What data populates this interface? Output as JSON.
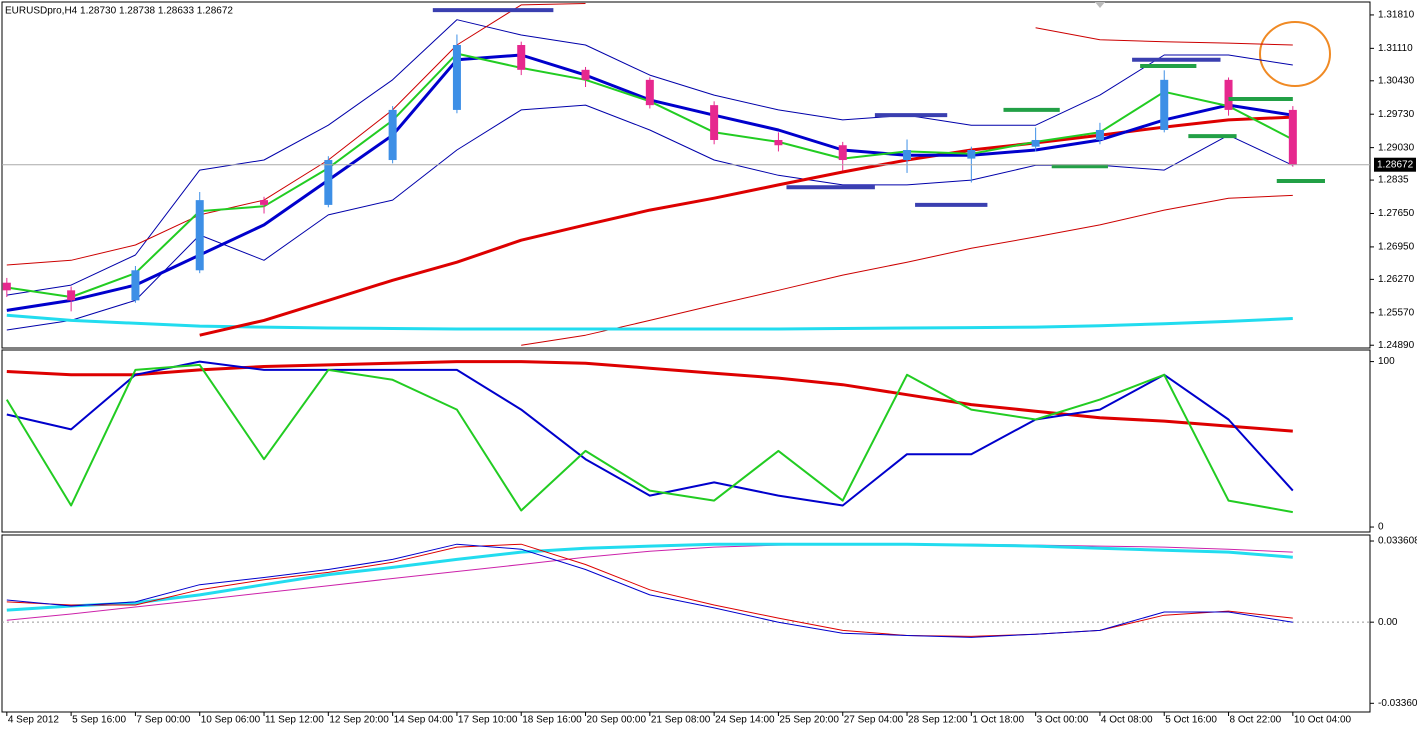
{
  "chart_data": [
    {
      "type": "candlestick",
      "title": "EURUSDpro,H4 1.28730 1.28738 1.28633 1.28672",
      "x": [
        0,
        8,
        16,
        24,
        32,
        40,
        48,
        56,
        64,
        72,
        80,
        88,
        96,
        104,
        112,
        120,
        128,
        136,
        144,
        152,
        160
      ],
      "open": [
        1.262,
        1.2604,
        1.2583,
        1.2646,
        1.2793,
        1.2783,
        1.2877,
        1.2982,
        1.3118,
        1.3066,
        1.3045,
        1.2992,
        1.2919,
        1.2908,
        1.2877,
        1.288,
        1.2905,
        1.2919,
        1.294,
        1.3045,
        1.2982
      ],
      "high": [
        1.263,
        1.2612,
        1.2655,
        1.281,
        1.28,
        1.2885,
        1.299,
        1.314,
        1.3125,
        1.3072,
        1.305,
        1.3,
        1.2935,
        1.2915,
        1.292,
        1.2905,
        1.2945,
        1.2955,
        1.3065,
        1.305,
        1.299
      ],
      "low": [
        1.259,
        1.256,
        1.2578,
        1.264,
        1.2765,
        1.2778,
        1.287,
        1.2975,
        1.3055,
        1.303,
        1.2985,
        1.291,
        1.2895,
        1.2855,
        1.285,
        1.283,
        1.2895,
        1.291,
        1.2935,
        1.297,
        1.2863
      ],
      "close": [
        1.2604,
        1.2583,
        1.2646,
        1.2793,
        1.2783,
        1.2877,
        1.2982,
        1.3118,
        1.3066,
        1.3045,
        1.2992,
        1.2919,
        1.2908,
        1.2877,
        1.2898,
        1.2898,
        1.2919,
        1.294,
        1.3045,
        1.2982,
        1.2867
      ],
      "up_color": "#3d8fe6",
      "down_color": "#e6288e",
      "series": [
        {
          "color": "#0000aa",
          "width": 1,
          "values": [
            1.2594,
            1.2615,
            1.2678,
            1.2856,
            1.2877,
            1.295,
            1.3045,
            1.3171,
            1.3139,
            1.3118,
            1.3055,
            1.3013,
            1.2982,
            1.2961,
            1.2971,
            1.295,
            1.295,
            1.3013,
            1.3097,
            1.3097,
            1.3076
          ]
        },
        {
          "color": "#0000aa",
          "width": 1,
          "values": [
            1.2521,
            1.2541,
            1.2583,
            1.272,
            1.2667,
            1.2762,
            1.2793,
            1.2898,
            1.2982,
            1.2992,
            1.294,
            1.2877,
            1.2845,
            1.2825,
            1.2825,
            1.2835,
            1.2866,
            1.2866,
            1.2856,
            1.2929,
            1.2866
          ]
        },
        {
          "color": "#cc0000",
          "width": 1,
          "values": [
            1.2657,
            1.2667,
            1.2699,
            1.2762,
            1.2793,
            1.2877,
            1.2982,
            1.3118,
            1.3202,
            1.3205,
            null,
            null,
            null,
            null,
            null,
            null,
            1.3154,
            1.3129,
            1.3125,
            1.3122,
            1.3118
          ]
        },
        {
          "color": "#cc0000",
          "width": 1,
          "values": [
            null,
            null,
            null,
            null,
            null,
            null,
            null,
            null,
            1.2489,
            1.251,
            1.2541,
            1.2573,
            1.2604,
            1.2636,
            1.2663,
            1.2692,
            1.2716,
            1.2741,
            1.2772,
            1.2797,
            1.2803
          ]
        },
        {
          "color": "#22dcef",
          "width": 3,
          "values": [
            1.2552,
            1.2541,
            1.2535,
            1.2529,
            1.2527,
            1.2525,
            1.2524,
            1.2523,
            1.2523,
            1.2523,
            1.2523,
            1.2523,
            1.2523,
            1.2524,
            1.2525,
            1.2526,
            1.2527,
            1.253,
            1.2534,
            1.2539,
            1.2545
          ]
        },
        {
          "color": "#dd0000",
          "width": 3,
          "values": [
            null,
            null,
            null,
            1.251,
            1.2541,
            1.2583,
            1.2625,
            1.2663,
            1.2709,
            1.2741,
            1.2772,
            1.2797,
            1.2825,
            1.2852,
            1.2877,
            1.2898,
            1.2913,
            1.2929,
            1.2946,
            1.2961,
            1.2967
          ]
        },
        {
          "color": "#0000cc",
          "width": 3,
          "values": [
            1.2562,
            1.2583,
            1.2615,
            1.2678,
            1.2741,
            1.2835,
            1.2929,
            1.3087,
            1.3097,
            1.3055,
            1.3003,
            1.2971,
            1.294,
            1.2898,
            1.2887,
            1.2887,
            1.2898,
            1.2919,
            1.2961,
            1.2992,
            1.2971
          ]
        },
        {
          "color": "#22cc22",
          "width": 2,
          "values": [
            1.261,
            1.259,
            1.264,
            1.277,
            1.278,
            1.286,
            1.296,
            1.31,
            1.307,
            1.3045,
            1.3,
            1.2935,
            1.2915,
            1.288,
            1.2895,
            1.289,
            1.2915,
            1.2935,
            1.302,
            1.299,
            1.292
          ]
        }
      ],
      "segments": [
        {
          "color": "#3a3fb0",
          "x": [
            53,
            68
          ],
          "y": 1.3191
        },
        {
          "color": "#3a3fb0",
          "x": [
            108,
            117
          ],
          "y": 1.2971
        },
        {
          "color": "#3a3fb0",
          "x": [
            140,
            151
          ],
          "y": 1.3087
        },
        {
          "color": "#3a3fb0",
          "x": [
            97,
            108
          ],
          "y": 1.282
        },
        {
          "color": "#3a3fb0",
          "x": [
            113,
            122
          ],
          "y": 1.2783
        },
        {
          "color": "#22a046",
          "x": [
            124,
            131
          ],
          "y": 1.2982
        },
        {
          "color": "#22a046",
          "x": [
            141,
            148
          ],
          "y": 1.3074
        },
        {
          "color": "#22a046",
          "x": [
            152,
            160
          ],
          "y": 1.3005
        },
        {
          "color": "#22a046",
          "x": [
            147,
            153
          ],
          "y": 1.2927
        },
        {
          "color": "#22a046",
          "x": [
            130,
            137
          ],
          "y": 1.2864
        },
        {
          "color": "#22a046",
          "x": [
            158,
            164
          ],
          "y": 1.2833
        }
      ],
      "current_price": 1.28672,
      "xlim": [
        -0.6,
        169.6
      ],
      "ylim": [
        1.2479,
        1.3206
      ],
      "yticks": [
        {
          "value": 1.3181,
          "label": "1.31810"
        },
        {
          "value": 1.3111,
          "label": "1.31110"
        },
        {
          "value": 1.3043,
          "label": "1.30430"
        },
        {
          "value": 1.2973,
          "label": "1.29730"
        },
        {
          "value": 1.2903,
          "label": "1.29030"
        },
        1.2835,
        {
          "value": 1.2765,
          "label": "1.27650"
        },
        {
          "value": 1.2695,
          "label": "1.26950"
        },
        {
          "value": 1.2627,
          "label": "1.26270"
        },
        {
          "value": 1.2557,
          "label": "1.25570"
        },
        {
          "value": 1.2489,
          "label": "1.24890"
        }
      ],
      "xticks": [
        {
          "value": 0,
          "label": "4 Sep 2012"
        },
        {
          "value": 8,
          "label": "5 Sep 16:00"
        },
        {
          "value": 16,
          "label": "7 Sep 00:00"
        },
        {
          "value": 24,
          "label": "10 Sep 06:00"
        },
        {
          "value": 32,
          "label": "11 Sep 12:00"
        },
        {
          "value": 40,
          "label": "12 Sep 20:00"
        },
        {
          "value": 48,
          "label": "14 Sep 04:00"
        },
        {
          "value": 56,
          "label": "17 Sep 10:00"
        },
        {
          "value": 64,
          "label": "18 Sep 16:00"
        },
        {
          "value": 72,
          "label": "20 Sep 00:00"
        },
        {
          "value": 80,
          "label": "21 Sep 08:00"
        },
        {
          "value": 88,
          "label": "24 Sep 14:00"
        },
        {
          "value": 96,
          "label": "25 Sep 20:00"
        },
        {
          "value": 104,
          "label": "27 Sep 04:00"
        },
        {
          "value": 112,
          "label": "28 Sep 12:00"
        },
        {
          "value": 120,
          "label": "1 Oct 18:00"
        },
        {
          "value": 128,
          "label": "3 Oct 00:00"
        },
        {
          "value": 136,
          "label": "4 Oct 08:00"
        },
        {
          "value": 144,
          "label": "5 Oct 16:00"
        },
        {
          "value": 152,
          "label": "8 Oct 22:00"
        },
        {
          "value": 160,
          "label": "10 Oct 04:00"
        }
      ]
    },
    {
      "type": "line",
      "ylim": [
        -3,
        107
      ],
      "yticks": [
        0,
        100
      ],
      "series": [
        {
          "color": "#dd0000",
          "width": 3,
          "values": [
            94,
            92,
            92,
            95,
            97,
            98,
            99,
            100,
            100,
            99,
            96,
            93,
            90,
            86,
            80,
            74,
            70,
            66,
            64,
            61,
            58
          ]
        },
        {
          "color": "#0000cc",
          "width": 2,
          "values": [
            68,
            59,
            92,
            100,
            95,
            95,
            95,
            95,
            71,
            41,
            19,
            27,
            19,
            13,
            44,
            44,
            65,
            71,
            92,
            65,
            22
          ]
        },
        {
          "color": "#22cc22",
          "width": 2,
          "values": [
            77,
            13,
            95,
            98,
            41,
            95,
            89,
            71,
            10,
            46,
            22,
            16,
            46,
            16,
            92,
            71,
            65,
            77,
            92,
            16,
            9
          ]
        }
      ]
    },
    {
      "type": "line",
      "ylim": [
        -0.0372,
        0.0361
      ],
      "zero_line": true,
      "yticks": [
        0.033608,
        {
          "value": 0,
          "label": "0.00"
        },
        {
          "value": -0.0336,
          "label": "-0.03360"
        }
      ],
      "series": [
        {
          "color": "#cc22aa",
          "width": 1,
          "values": [
            0.0008,
            0.0034,
            0.0063,
            0.0092,
            0.0122,
            0.0151,
            0.0181,
            0.021,
            0.0239,
            0.0269,
            0.0294,
            0.0311,
            0.0319,
            0.0323,
            0.0323,
            0.0323,
            0.0319,
            0.0315,
            0.0311,
            0.0302,
            0.029
          ]
        },
        {
          "color": "#22dcef",
          "width": 3,
          "values": [
            0.005,
            0.0067,
            0.008,
            0.0113,
            0.0155,
            0.0197,
            0.0227,
            0.026,
            0.029,
            0.0306,
            0.0315,
            0.0323,
            0.0323,
            0.0323,
            0.0323,
            0.0319,
            0.0315,
            0.0306,
            0.0298,
            0.029,
            0.0269
          ]
        },
        {
          "color": "#dd0000",
          "width": 1,
          "values": [
            0.0084,
            0.0071,
            0.0071,
            0.0134,
            0.0176,
            0.0206,
            0.0248,
            0.0311,
            0.0323,
            0.0239,
            0.0134,
            0.0071,
            0.0017,
            -0.0034,
            -0.0055,
            -0.0059,
            -0.005,
            -0.0034,
            0.0029,
            0.0046,
            0.0017
          ]
        },
        {
          "color": "#0000cc",
          "width": 1,
          "values": [
            0.0092,
            0.0067,
            0.0084,
            0.0155,
            0.0185,
            0.0218,
            0.026,
            0.0323,
            0.0302,
            0.0218,
            0.0113,
            0.0059,
            0,
            -0.0046,
            -0.0055,
            -0.0063,
            -0.005,
            -0.0034,
            0.0042,
            0.0042,
            0
          ]
        }
      ]
    }
  ]
}
